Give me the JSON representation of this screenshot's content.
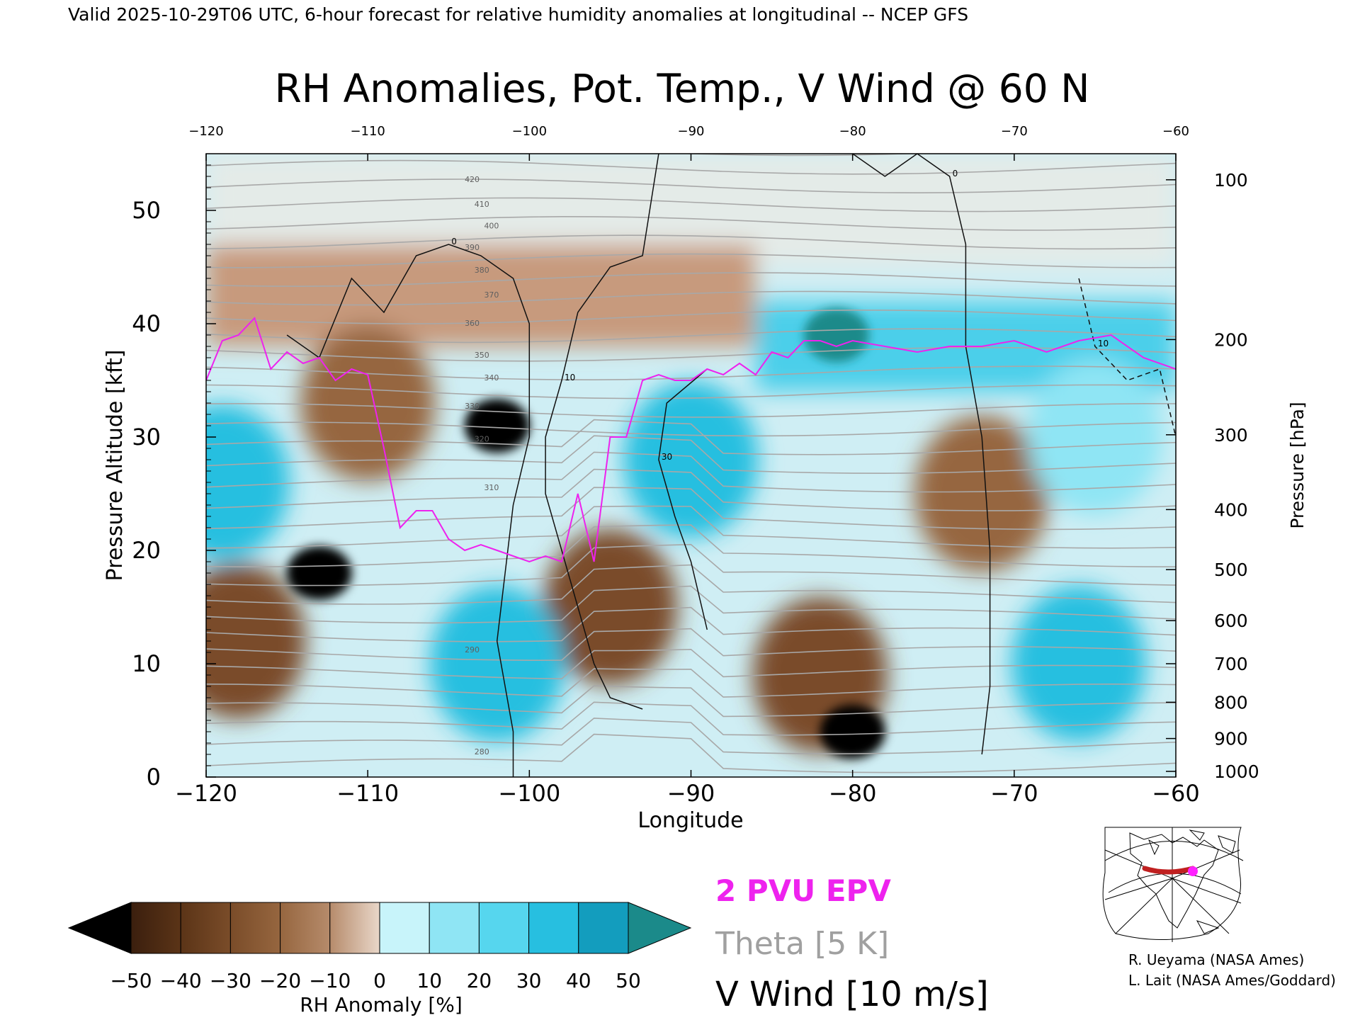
{
  "header": {
    "valid_line": "Valid 2025-10-29T06 UTC, 6-hour forecast for relative humidity anomalies at longitudinal -- NCEP GFS",
    "title": "RH Anomalies, Pot. Temp., V Wind @ 60 N"
  },
  "chart_data": {
    "type": "heatmap",
    "title": "RH Anomalies, Pot. Temp., V Wind @ 60 N",
    "xlabel": "Longitude",
    "ylabel": "Pressure Altitude [kft]",
    "y2label": "Pressure [hPa]",
    "xlim": [
      -120,
      -60
    ],
    "ylim": [
      0,
      55
    ],
    "x_ticks": [
      "-120",
      "-110",
      "-100",
      "-90",
      "-80",
      "-70",
      "-60"
    ],
    "x_ticks_top": [
      "-120",
      "-110",
      "-100",
      "-90",
      "-80",
      "-70",
      "-60"
    ],
    "y_ticks": [
      "0",
      "10",
      "20",
      "30",
      "40",
      "50"
    ],
    "pressure_ticks": [
      {
        "label": "100",
        "kft": 52.7
      },
      {
        "label": "200",
        "kft": 38.6
      },
      {
        "label": "300",
        "kft": 30.2
      },
      {
        "label": "400",
        "kft": 23.6
      },
      {
        "label": "500",
        "kft": 18.3
      },
      {
        "label": "600",
        "kft": 13.8
      },
      {
        "label": "700",
        "kft": 10.0
      },
      {
        "label": "800",
        "kft": 6.6
      },
      {
        "label": "900",
        "kft": 3.4
      },
      {
        "label": "1000",
        "kft": 0.5
      }
    ],
    "colorbar": {
      "label": "RH Anomaly [%]",
      "ticks": [
        "-50",
        "-40",
        "-30",
        "-20",
        "-10",
        "0",
        "10",
        "20",
        "30",
        "40",
        "50"
      ],
      "colors": [
        "#3b1f0e",
        "#5b3417",
        "#7a4c29",
        "#96663f",
        "#b68b6b",
        "#e9d7c9",
        "#c8f4fa",
        "#8fe5f4",
        "#56d6ee",
        "#27bfe0",
        "#139dbe"
      ],
      "under_color": "#000000",
      "over_color": "#1b8a8a"
    },
    "legend": [
      {
        "label": "2 PVU EPV",
        "color": "#ee22ee"
      },
      {
        "label": "Theta [5 K]",
        "color": "#a0a0a0"
      },
      {
        "label": "V Wind [10 m/s]",
        "color": "#000000"
      }
    ],
    "theta_contour_labels": [
      "420",
      "410",
      "400",
      "390",
      "380",
      "370",
      "360",
      "350",
      "340",
      "330",
      "320",
      "310",
      "290",
      "280"
    ],
    "pv2_tropopause": {
      "lon": [
        -120,
        -119,
        -118,
        -117,
        -116,
        -115,
        -114,
        -113,
        -112,
        -111,
        -110,
        -109,
        -108,
        -107,
        -106,
        -105,
        -104,
        -103,
        -102,
        -101,
        -100,
        -99,
        -98,
        -97,
        -96,
        -95,
        -94,
        -93,
        -92,
        -91,
        -90,
        -89,
        -88,
        -87,
        -86,
        -85,
        -84,
        -83,
        -82,
        -81,
        -80,
        -78,
        -76,
        -74,
        -72,
        -70,
        -68,
        -66,
        -64,
        -62,
        -60
      ],
      "kft": [
        35,
        38.5,
        39,
        40.5,
        36,
        37.5,
        36.5,
        37,
        35,
        36,
        35.5,
        29,
        22,
        23.5,
        23.5,
        21,
        20,
        20.5,
        20,
        19.5,
        19,
        19.5,
        19,
        25,
        19,
        30,
        30,
        35,
        35.5,
        35,
        35,
        36,
        35.5,
        36.5,
        35.5,
        37.5,
        37,
        38.5,
        38.5,
        38,
        38.5,
        38,
        37.5,
        38,
        38,
        38.5,
        37.5,
        38.5,
        39,
        37,
        36
      ]
    },
    "rh_anomaly_features": [
      {
        "lon": -102,
        "kft": 31,
        "value": -55
      },
      {
        "lon": -110,
        "kft": 33,
        "value": -20
      },
      {
        "lon": -113,
        "kft": 18,
        "value": -55
      },
      {
        "lon": -80,
        "kft": 4,
        "value": -55
      },
      {
        "lon": -82,
        "kft": 9,
        "value": -30
      },
      {
        "lon": -72,
        "kft": 25,
        "value": -15
      },
      {
        "lon": -95,
        "kft": 15,
        "value": -25
      },
      {
        "lon": -118,
        "kft": 12,
        "value": -30
      },
      {
        "lon": -102,
        "kft": 10,
        "value": 40
      },
      {
        "lon": -90,
        "kft": 28,
        "value": 40
      },
      {
        "lon": -81,
        "kft": 39,
        "value": 55
      },
      {
        "lon": -119,
        "kft": 26,
        "value": 40
      },
      {
        "lon": -66,
        "kft": 10,
        "value": 45
      },
      {
        "lon": -65,
        "kft": 30,
        "value": 25
      }
    ],
    "v_wind_contours": [
      {
        "label": "0",
        "lon": [
          -115,
          -113,
          -111,
          -109,
          -107,
          -105,
          -103,
          -101,
          -100,
          -100,
          -101,
          -101.5,
          -102,
          -101.5,
          -101,
          -101
        ],
        "kft": [
          39,
          37,
          44,
          41,
          46,
          47,
          46,
          44,
          40,
          30,
          24,
          18,
          12,
          8,
          4,
          0
        ]
      },
      {
        "label": "10",
        "lon": [
          -92,
          -93,
          -95,
          -97,
          -98,
          -99,
          -99,
          -98,
          -97,
          -96,
          -95,
          -93
        ],
        "kft": [
          55,
          46,
          45,
          41,
          35,
          30,
          25,
          20,
          15,
          10,
          7,
          6
        ]
      },
      {
        "label": "0",
        "lon": [
          -80,
          -78,
          -76,
          -74,
          -73,
          -73,
          -72,
          -71.5,
          -71.5,
          -71.5,
          -72
        ],
        "kft": [
          55,
          53,
          55,
          53,
          47,
          38,
          30,
          20,
          14,
          8,
          2
        ]
      },
      {
        "label": "30",
        "lon": [
          -89,
          -91.5,
          -92,
          -91,
          -90,
          -89
        ],
        "kft": [
          36,
          33,
          28,
          23,
          19,
          13
        ]
      },
      {
        "label": "10",
        "lon": [
          -66,
          -65,
          -63,
          -61,
          -60
        ],
        "kft": [
          44,
          38,
          35,
          36,
          30
        ]
      }
    ]
  },
  "inset_map": {
    "route_color": "#c02020",
    "point_color": "#ff20ff"
  },
  "credits": {
    "line1": "R. Ueyama (NASA Ames)",
    "line2": "L. Lait (NASA Ames/Goddard)"
  }
}
